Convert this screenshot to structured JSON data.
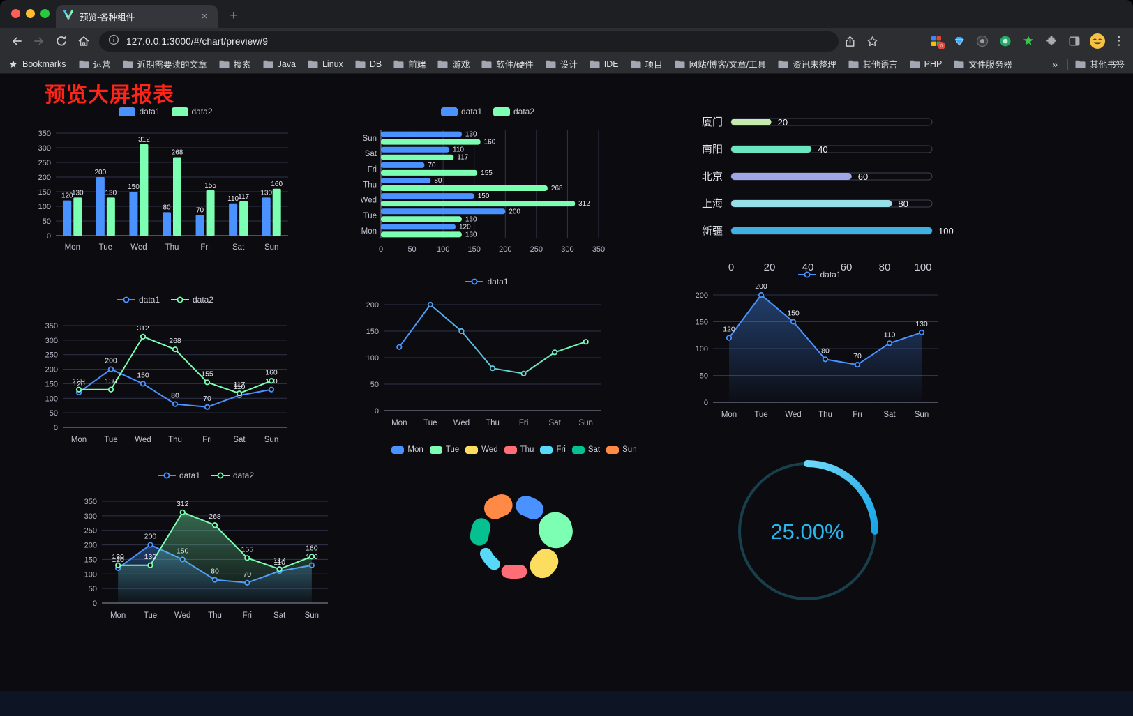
{
  "browser": {
    "traffic_lights": [
      "#ff5f57",
      "#febc2e",
      "#28c840"
    ],
    "tab": {
      "title": "预览-各种组件"
    },
    "icons": {
      "close": "×",
      "new_tab": "+",
      "menu": "⋮"
    },
    "url": "127.0.0.1:3000/#/chart/preview/9",
    "bookmarks_bar": {
      "bookmarks_label": "Bookmarks",
      "folders": [
        "运营",
        "近期需要读的文章",
        "搜索",
        "Java",
        "Linux",
        "DB",
        "前端",
        "游戏",
        "软件/硬件",
        "设计",
        "IDE",
        "项目",
        "网站/博客/文章/工具",
        "资讯未整理",
        "其他语言",
        "PHP",
        "文件服务器"
      ],
      "overflow": "»",
      "other_bookmarks": "其他书签"
    }
  },
  "page": {
    "title": "预览大屏报表",
    "title_color": "#fe2418",
    "background": "#0b0b10"
  },
  "chart_data": [
    {
      "type": "bar",
      "legend": "rect",
      "categories": [
        "Mon",
        "Tue",
        "Wed",
        "Thu",
        "Fri",
        "Sat",
        "Sun"
      ],
      "series": [
        {
          "name": "data1",
          "color": "#4992ff",
          "values": [
            120,
            200,
            150,
            80,
            70,
            110,
            130
          ]
        },
        {
          "name": "data2",
          "color": "#7cffb2",
          "values": [
            130,
            130,
            312,
            268,
            155,
            117,
            160
          ]
        }
      ],
      "ylim": [
        0,
        350
      ],
      "yticks": [
        0,
        50,
        100,
        150,
        200,
        250,
        300,
        350
      ],
      "labels": true
    },
    {
      "type": "bar-horizontal",
      "legend": "rect",
      "categories": [
        "Mon",
        "Tue",
        "Wed",
        "Thu",
        "Fri",
        "Sat",
        "Sun"
      ],
      "series": [
        {
          "name": "data1",
          "color": "#4992ff",
          "values": [
            120,
            200,
            150,
            80,
            70,
            110,
            130
          ]
        },
        {
          "name": "data2",
          "color": "#7cffb2",
          "values": [
            130,
            130,
            312,
            268,
            155,
            117,
            160
          ]
        }
      ],
      "xlim": [
        0,
        350
      ],
      "xticks": [
        0,
        50,
        100,
        150,
        200,
        250,
        300,
        350
      ],
      "labels": true
    },
    {
      "type": "progress-bars",
      "items": [
        {
          "label": "厦门",
          "value": 20,
          "color": "#c4ebad"
        },
        {
          "label": "南阳",
          "value": 40,
          "color": "#6be6c1"
        },
        {
          "label": "北京",
          "value": 60,
          "color": "#a0a7e6"
        },
        {
          "label": "上海",
          "value": 80,
          "color": "#96dee8"
        },
        {
          "label": "新疆",
          "value": 100,
          "color": "#3fb1e3"
        }
      ],
      "xlim": [
        0,
        100
      ],
      "xticks": [
        0,
        20,
        40,
        60,
        80,
        100
      ]
    },
    {
      "type": "line",
      "legend": "line",
      "categories": [
        "Mon",
        "Tue",
        "Wed",
        "Thu",
        "Fri",
        "Sat",
        "Sun"
      ],
      "series": [
        {
          "name": "data1",
          "color": "#4992ff",
          "values": [
            120,
            200,
            150,
            80,
            70,
            110,
            130
          ]
        },
        {
          "name": "data2",
          "color": "#7cffb2",
          "values": [
            130,
            130,
            312,
            268,
            155,
            117,
            160
          ]
        }
      ],
      "ylim": [
        0,
        350
      ],
      "yticks": [
        0,
        50,
        100,
        150,
        200,
        250,
        300,
        350
      ],
      "labels": true
    },
    {
      "type": "line",
      "legend": "line",
      "categories": [
        "Mon",
        "Tue",
        "Wed",
        "Thu",
        "Fri",
        "Sat",
        "Sun"
      ],
      "series": [
        {
          "name": "data1",
          "color": "#4992ff",
          "gradient": [
            "#4992ff",
            "#7cffb2"
          ],
          "values": [
            120,
            200,
            150,
            80,
            70,
            110,
            130
          ]
        }
      ],
      "ylim": [
        0,
        200
      ],
      "yticks": [
        0,
        50,
        100,
        150,
        200
      ],
      "labels": false
    },
    {
      "type": "line",
      "legend": "line",
      "categories": [
        "Mon",
        "Tue",
        "Wed",
        "Thu",
        "Fri",
        "Sat",
        "Sun"
      ],
      "series": [
        {
          "name": "data1",
          "color": "#4992ff",
          "area": true,
          "values": [
            120,
            200,
            150,
            80,
            70,
            110,
            130
          ]
        }
      ],
      "ylim": [
        0,
        200
      ],
      "yticks": [
        0,
        50,
        100,
        150,
        200
      ],
      "labels": true
    },
    {
      "type": "line",
      "legend": "line",
      "categories": [
        "Mon",
        "Tue",
        "Wed",
        "Thu",
        "Fri",
        "Sat",
        "Sun"
      ],
      "series": [
        {
          "name": "data1",
          "color": "#4992ff",
          "area": true,
          "values": [
            120,
            200,
            150,
            80,
            70,
            110,
            130
          ]
        },
        {
          "name": "data2",
          "color": "#7cffb2",
          "area": true,
          "values": [
            130,
            130,
            312,
            268,
            155,
            117,
            160
          ]
        }
      ],
      "ylim": [
        0,
        350
      ],
      "yticks": [
        0,
        50,
        100,
        150,
        200,
        250,
        300,
        350
      ],
      "labels": true
    },
    {
      "type": "rose",
      "legend": "rect",
      "slices": [
        {
          "name": "Mon",
          "value": 120,
          "color": "#4992ff"
        },
        {
          "name": "Tue",
          "value": 200,
          "color": "#7cffb2"
        },
        {
          "name": "Wed",
          "value": 150,
          "color": "#fddd60"
        },
        {
          "name": "Thu",
          "value": 80,
          "color": "#ff6e76"
        },
        {
          "name": "Fri",
          "value": 70,
          "color": "#58d9f9"
        },
        {
          "name": "Sat",
          "value": 110,
          "color": "#05c091"
        },
        {
          "name": "Sun",
          "value": 130,
          "color": "#ff8a45"
        }
      ]
    },
    {
      "type": "gauge",
      "value_text": "25.00%",
      "percent": 25,
      "color": "#2ab5ec",
      "track_color": "#173f4c"
    }
  ]
}
